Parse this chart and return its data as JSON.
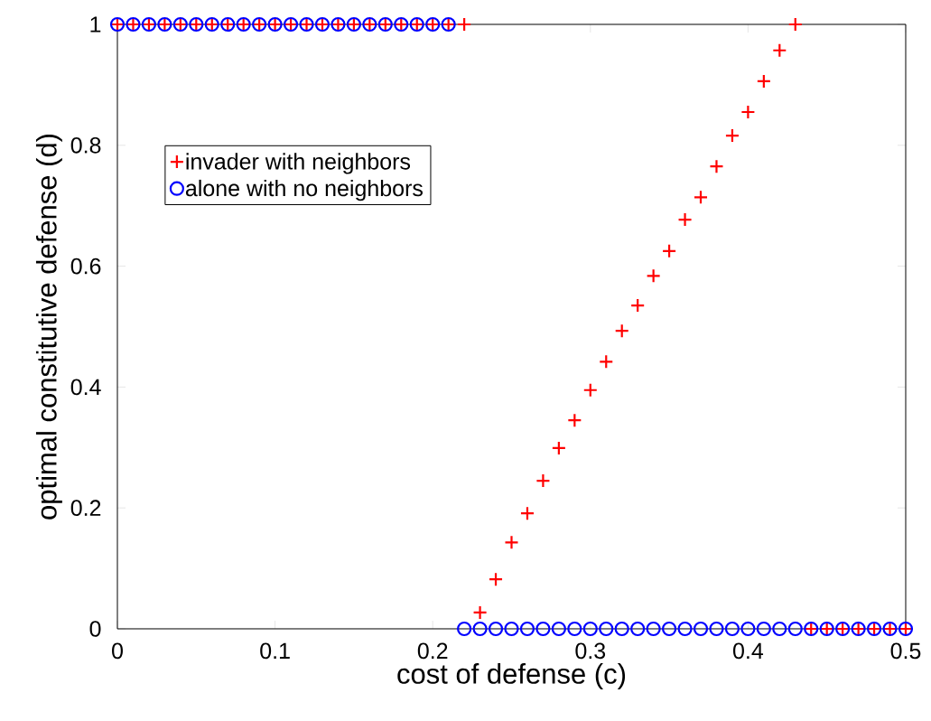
{
  "chart_data": {
    "type": "scatter",
    "xlabel": "cost of defense (c)",
    "ylabel": "optimal constitutive defense (d)",
    "x": [
      0,
      0.01,
      0.02,
      0.03,
      0.04,
      0.05,
      0.06,
      0.07,
      0.08,
      0.09,
      0.1,
      0.11,
      0.12,
      0.13,
      0.14,
      0.15,
      0.16,
      0.17,
      0.18,
      0.19,
      0.2,
      0.21,
      0.22,
      0.23,
      0.24,
      0.25,
      0.26,
      0.27,
      0.28,
      0.29,
      0.3,
      0.31,
      0.32,
      0.33,
      0.34,
      0.35,
      0.36,
      0.37,
      0.38,
      0.39,
      0.4,
      0.41,
      0.42,
      0.43,
      0.44,
      0.45,
      0.46,
      0.47,
      0.48,
      0.49,
      0.5
    ],
    "series": [
      {
        "name": "invader with neighbors",
        "color": "#ff0000",
        "marker": "cross",
        "values": [
          1,
          1,
          1,
          1,
          1,
          1,
          1,
          1,
          1,
          1,
          1,
          1,
          1,
          1,
          1,
          1,
          1,
          1,
          1,
          1,
          1,
          1,
          1,
          0.027,
          0.082,
          0.143,
          0.191,
          0.245,
          0.299,
          0.345,
          0.395,
          0.442,
          0.493,
          0.535,
          0.584,
          0.625,
          0.677,
          0.714,
          0.765,
          0.816,
          0.855,
          0.906,
          0.957,
          1,
          0,
          0,
          0,
          0,
          0,
          0,
          0
        ]
      },
      {
        "name": "alone with no neighbors",
        "color": "#0000ff",
        "marker": "circle",
        "values": [
          1,
          1,
          1,
          1,
          1,
          1,
          1,
          1,
          1,
          1,
          1,
          1,
          1,
          1,
          1,
          1,
          1,
          1,
          1,
          1,
          1,
          1,
          0,
          0,
          0,
          0,
          0,
          0,
          0,
          0,
          0,
          0,
          0,
          0,
          0,
          0,
          0,
          0,
          0,
          0,
          0,
          0,
          0,
          0,
          0,
          0,
          0,
          0,
          0,
          0,
          0
        ]
      }
    ],
    "xlim": [
      0,
      0.5
    ],
    "xticks": [
      0,
      0.1,
      0.2,
      0.3,
      0.4,
      0.5
    ],
    "ylim": [
      0,
      1
    ],
    "yticks": [
      0,
      0.2,
      0.4,
      0.6,
      0.8,
      1
    ],
    "grid": false,
    "legend": "top left"
  }
}
